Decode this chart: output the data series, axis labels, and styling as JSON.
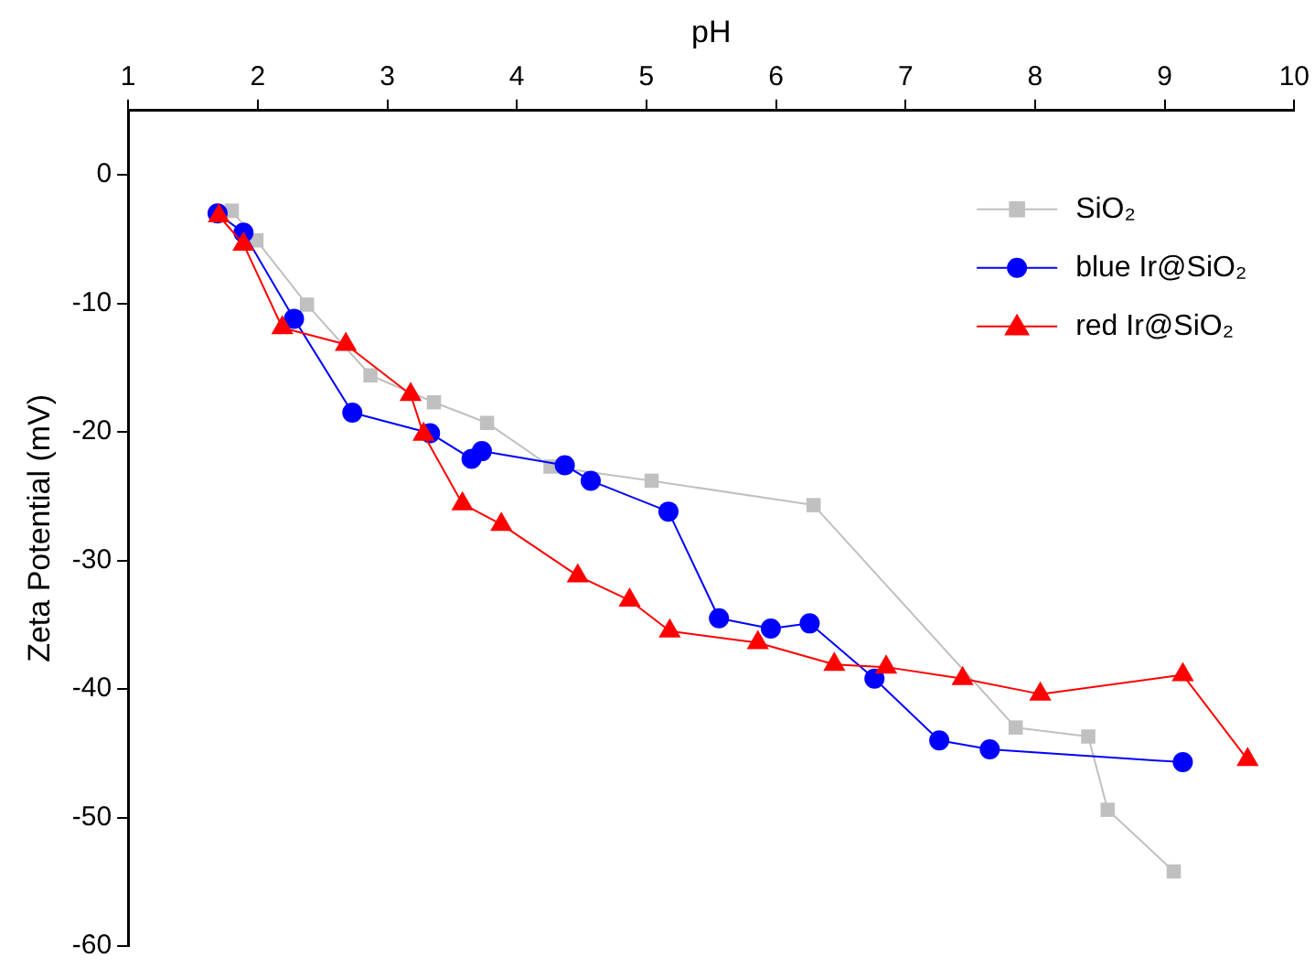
{
  "chart_data": {
    "type": "line",
    "xlabel": "pH",
    "ylabel": "Zeta Potential (mV)",
    "xlim": [
      1,
      10
    ],
    "ylim": [
      -60,
      5
    ],
    "xticks": [
      1,
      2,
      3,
      4,
      5,
      6,
      7,
      8,
      9,
      10
    ],
    "yticks": [
      -60,
      -50,
      -40,
      -30,
      -20,
      -10,
      0
    ],
    "grid": false,
    "legend": "top right",
    "line_style": "solid",
    "series": [
      {
        "name": "SiO₂",
        "color": "#c0c0c0",
        "marker": "square",
        "x": [
          1.8,
          1.99,
          2.38,
          2.87,
          3.36,
          3.77,
          4.26,
          5.04,
          6.29,
          7.85,
          8.41,
          8.56,
          9.07
        ],
        "values": [
          -2.8,
          -5.1,
          -10.1,
          -15.6,
          -17.7,
          -19.3,
          -22.7,
          -23.8,
          -25.7,
          -43.0,
          -43.7,
          -49.4,
          -54.2
        ]
      },
      {
        "name": "blue Ir@SiO₂",
        "color": "#0000ff",
        "marker": "circle",
        "x": [
          1.69,
          1.89,
          2.28,
          2.73,
          3.33,
          3.65,
          3.73,
          4.37,
          4.57,
          5.17,
          5.56,
          5.96,
          6.26,
          6.76,
          7.26,
          7.65,
          9.14
        ],
        "values": [
          -3.0,
          -4.5,
          -11.2,
          -18.5,
          -20.1,
          -22.1,
          -21.5,
          -22.6,
          -23.8,
          -26.2,
          -34.5,
          -35.3,
          -34.9,
          -39.2,
          -44.0,
          -44.7,
          -45.7
        ]
      },
      {
        "name": "red Ir@SiO₂",
        "color": "#ff0000",
        "marker": "triangle",
        "x": [
          1.7,
          1.89,
          2.19,
          2.68,
          3.18,
          3.28,
          3.58,
          3.88,
          4.47,
          4.87,
          5.18,
          5.86,
          6.45,
          6.85,
          7.44,
          8.04,
          9.14,
          9.64
        ],
        "values": [
          -3.2,
          -5.4,
          -11.9,
          -13.2,
          -17.1,
          -20.2,
          -25.6,
          -27.2,
          -31.2,
          -33.1,
          -35.5,
          -36.4,
          -38.1,
          -38.3,
          -39.2,
          -40.4,
          -38.9,
          -45.5
        ]
      }
    ]
  }
}
